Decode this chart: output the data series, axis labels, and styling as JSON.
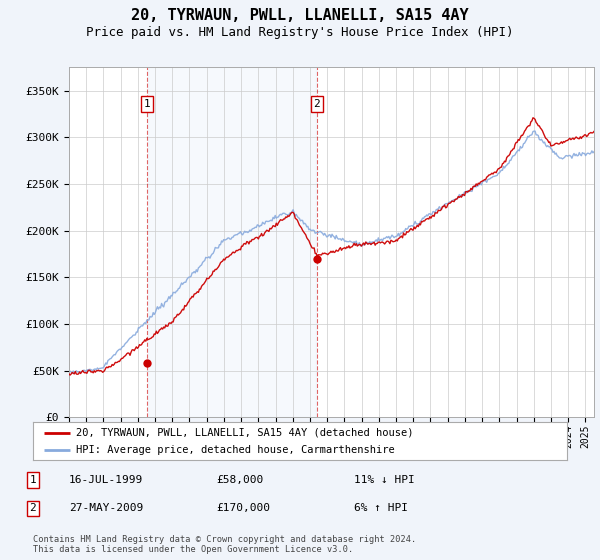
{
  "title": "20, TYRWAUN, PWLL, LLANELLI, SA15 4AY",
  "subtitle": "Price paid vs. HM Land Registry's House Price Index (HPI)",
  "title_fontsize": 11,
  "subtitle_fontsize": 9,
  "ylim": [
    0,
    375000
  ],
  "yticks": [
    0,
    50000,
    100000,
    150000,
    200000,
    250000,
    300000,
    350000
  ],
  "ytick_labels": [
    "£0",
    "£50K",
    "£100K",
    "£150K",
    "£200K",
    "£250K",
    "£300K",
    "£350K"
  ],
  "background_color": "#f0f4fa",
  "plot_background": "#ffffff",
  "hpi_color": "#88aadd",
  "price_color": "#cc0000",
  "sale1_x": 1999.54,
  "sale1_y": 58000,
  "sale2_x": 2009.4,
  "sale2_y": 170000,
  "legend_price_label": "20, TYRWAUN, PWLL, LLANELLI, SA15 4AY (detached house)",
  "legend_hpi_label": "HPI: Average price, detached house, Carmarthenshire",
  "table_rows": [
    {
      "num": "1",
      "date": "16-JUL-1999",
      "price": "£58,000",
      "hpi": "11% ↓ HPI"
    },
    {
      "num": "2",
      "date": "27-MAY-2009",
      "price": "£170,000",
      "hpi": "6% ↑ HPI"
    }
  ],
  "footer": "Contains HM Land Registry data © Crown copyright and database right 2024.\nThis data is licensed under the Open Government Licence v3.0.",
  "xmin": 1995.0,
  "xmax": 2025.5
}
